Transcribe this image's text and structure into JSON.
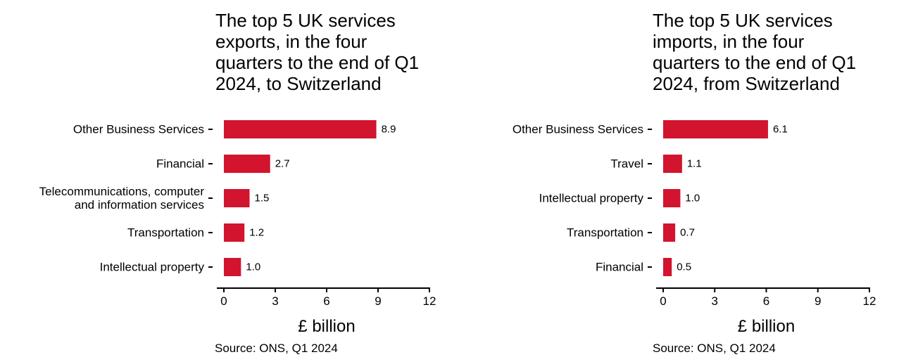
{
  "colors": {
    "bar": "#d2142f",
    "axis": "#000000"
  },
  "chart_data": [
    {
      "type": "bar",
      "orientation": "horizontal",
      "title": "The top 5 UK services\nexports, in the four\nquarters to the end of Q1\n2024, to Switzerland",
      "categories": [
        [
          "Other Business Services"
        ],
        [
          "Financial"
        ],
        [
          "Telecommunications, computer",
          "and information services"
        ],
        [
          "Transportation"
        ],
        [
          "Intellectual property"
        ]
      ],
      "values": [
        8.9,
        2.7,
        1.5,
        1.2,
        1.0
      ],
      "value_labels": [
        "8.9",
        "2.7",
        "1.5",
        "1.2",
        "1.0"
      ],
      "xlim": [
        0,
        12
      ],
      "xticks": [
        0,
        3,
        6,
        9,
        12
      ],
      "xlabel": "£ billion",
      "source": "Source: ONS, Q1 2024",
      "grid": false,
      "legend": "none"
    },
    {
      "type": "bar",
      "orientation": "horizontal",
      "title": "The top 5 UK services\nimports, in the four\nquarters to the end of Q1\n2024, from Switzerland",
      "categories": [
        [
          "Other Business Services"
        ],
        [
          "Travel"
        ],
        [
          "Intellectual property"
        ],
        [
          "Transportation"
        ],
        [
          "Financial"
        ]
      ],
      "values": [
        6.1,
        1.1,
        1.0,
        0.7,
        0.5
      ],
      "value_labels": [
        "6.1",
        "1.1",
        "1.0",
        "0.7",
        "0.5"
      ],
      "xlim": [
        0,
        12
      ],
      "xticks": [
        0,
        3,
        6,
        9,
        12
      ],
      "xlabel": "£ billion",
      "source": "Source: ONS, Q1 2024",
      "grid": false,
      "legend": "none"
    }
  ]
}
